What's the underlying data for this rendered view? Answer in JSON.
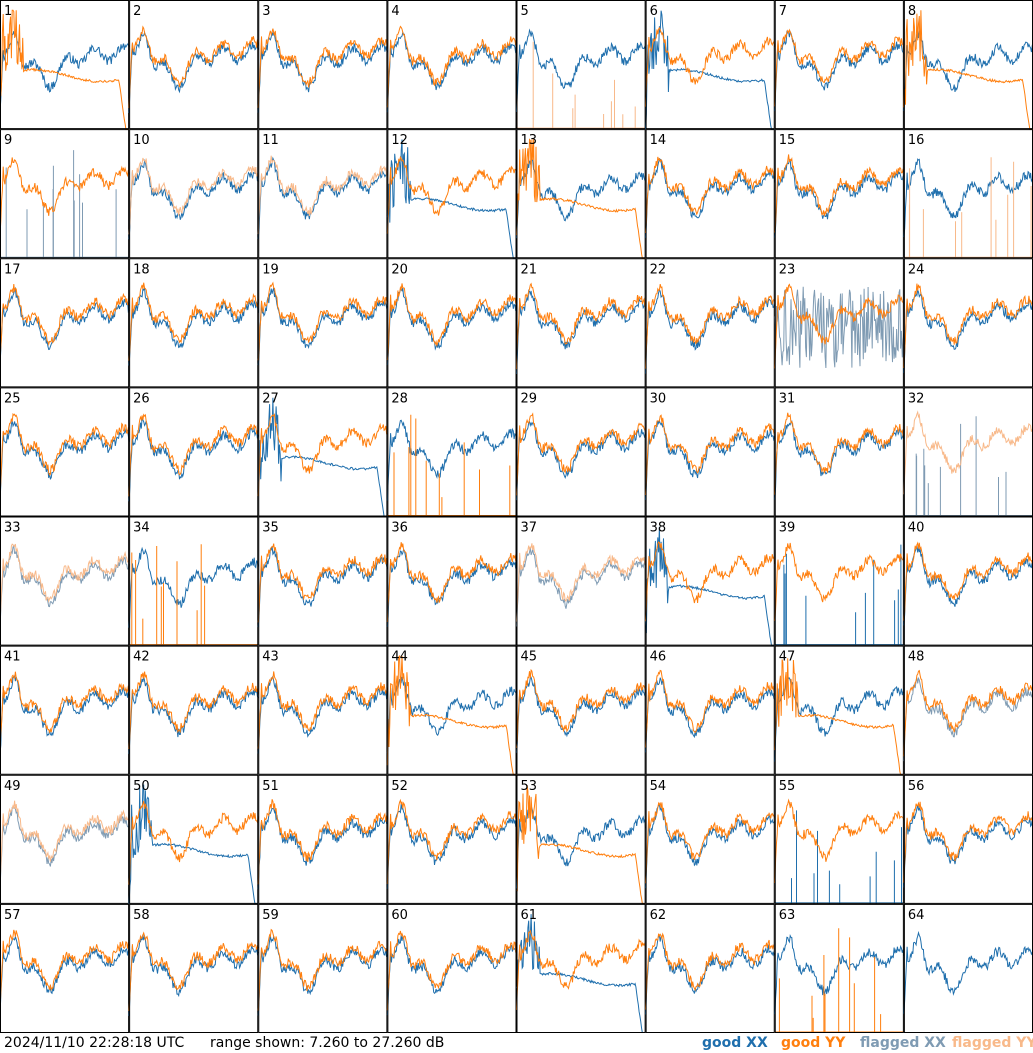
{
  "footer": {
    "timestamp": "2024/11/10 22:28:18 UTC",
    "range_text": "range shown: 7.260 to 27.260 dB"
  },
  "legend": [
    {
      "label": "good XX",
      "color": "#1f6fad"
    },
    {
      "label": "good YY",
      "color": "#ff7f0e"
    },
    {
      "label": "flagged XX",
      "color": "#7f9bb3"
    },
    {
      "label": "flagged YY",
      "color": "#f8b98a"
    }
  ],
  "colors": {
    "good_xx": "#1f6fad",
    "good_yy": "#ff7f0e",
    "flagged_xx": "#7f9bb3",
    "flagged_yy": "#f8b98a"
  },
  "chart_data": {
    "type": "line",
    "grid_rows": 8,
    "grid_cols": 8,
    "ylim": [
      7.26,
      27.26
    ],
    "yunits": "dB",
    "series_names": [
      "good XX",
      "good YY",
      "flagged XX",
      "flagged YY"
    ],
    "panels": [
      {
        "label": "1",
        "xx": "good",
        "yy": "good",
        "yy_mode": "dropoff"
      },
      {
        "label": "2",
        "xx": "good",
        "yy": "good"
      },
      {
        "label": "3",
        "xx": "good",
        "yy": "good"
      },
      {
        "label": "4",
        "xx": "good",
        "yy": "good"
      },
      {
        "label": "5",
        "xx": "good",
        "yy": "flagged",
        "yy_mode": "spikes"
      },
      {
        "label": "6",
        "xx": "good",
        "yy": "good",
        "xx_mode": "dropoff"
      },
      {
        "label": "7",
        "xx": "good",
        "yy": "good"
      },
      {
        "label": "8",
        "xx": "good",
        "yy": "good",
        "yy_mode": "dropoff"
      },
      {
        "label": "9",
        "xx": "flagged",
        "yy": "good",
        "xx_mode": "spikes"
      },
      {
        "label": "10",
        "xx": "good",
        "yy": "flagged"
      },
      {
        "label": "11",
        "xx": "good",
        "yy": "flagged"
      },
      {
        "label": "12",
        "xx": "good",
        "yy": "good",
        "xx_mode": "dropoff"
      },
      {
        "label": "13",
        "xx": "good",
        "yy": "good",
        "yy_mode": "dropoff"
      },
      {
        "label": "14",
        "xx": "good",
        "yy": "good"
      },
      {
        "label": "15",
        "xx": "good",
        "yy": "good"
      },
      {
        "label": "16",
        "xx": "good",
        "yy": "flagged",
        "yy_mode": "spikes"
      },
      {
        "label": "17",
        "xx": "good",
        "yy": "good"
      },
      {
        "label": "18",
        "xx": "good",
        "yy": "good"
      },
      {
        "label": "19",
        "xx": "good",
        "yy": "good"
      },
      {
        "label": "20",
        "xx": "good",
        "yy": "good"
      },
      {
        "label": "21",
        "xx": "good",
        "yy": "good"
      },
      {
        "label": "22",
        "xx": "good",
        "yy": "good"
      },
      {
        "label": "23",
        "xx": "flagged",
        "yy": "good",
        "xx_mode": "noisy"
      },
      {
        "label": "24",
        "xx": "good",
        "yy": "good"
      },
      {
        "label": "25",
        "xx": "good",
        "yy": "good"
      },
      {
        "label": "26",
        "xx": "good",
        "yy": "good"
      },
      {
        "label": "27",
        "xx": "good",
        "yy": "good",
        "xx_mode": "dropoff"
      },
      {
        "label": "28",
        "xx": "good",
        "yy": "good",
        "yy_mode": "spikes"
      },
      {
        "label": "29",
        "xx": "good",
        "yy": "good"
      },
      {
        "label": "30",
        "xx": "good",
        "yy": "good"
      },
      {
        "label": "31",
        "xx": "good",
        "yy": "good"
      },
      {
        "label": "32",
        "xx": "flagged",
        "yy": "flagged",
        "xx_mode": "spikes"
      },
      {
        "label": "33",
        "xx": "flagged",
        "yy": "flagged"
      },
      {
        "label": "34",
        "xx": "good",
        "yy": "good",
        "yy_mode": "spikes"
      },
      {
        "label": "35",
        "xx": "good",
        "yy": "good"
      },
      {
        "label": "36",
        "xx": "good",
        "yy": "good"
      },
      {
        "label": "37",
        "xx": "flagged",
        "yy": "flagged"
      },
      {
        "label": "38",
        "xx": "good",
        "yy": "good",
        "xx_mode": "dropoff"
      },
      {
        "label": "39",
        "xx": "good",
        "yy": "good",
        "xx_mode": "spikes"
      },
      {
        "label": "40",
        "xx": "good",
        "yy": "good"
      },
      {
        "label": "41",
        "xx": "good",
        "yy": "good"
      },
      {
        "label": "42",
        "xx": "good",
        "yy": "good"
      },
      {
        "label": "43",
        "xx": "good",
        "yy": "good"
      },
      {
        "label": "44",
        "xx": "good",
        "yy": "good",
        "yy_mode": "dropoff"
      },
      {
        "label": "45",
        "xx": "good",
        "yy": "good"
      },
      {
        "label": "46",
        "xx": "good",
        "yy": "good"
      },
      {
        "label": "47",
        "xx": "good",
        "yy": "good",
        "yy_mode": "dropoff"
      },
      {
        "label": "48",
        "xx": "flagged",
        "yy": "good"
      },
      {
        "label": "49",
        "xx": "flagged",
        "yy": "flagged"
      },
      {
        "label": "50",
        "xx": "good",
        "yy": "good",
        "xx_mode": "dropoff"
      },
      {
        "label": "51",
        "xx": "good",
        "yy": "good"
      },
      {
        "label": "52",
        "xx": "good",
        "yy": "good"
      },
      {
        "label": "53",
        "xx": "good",
        "yy": "good",
        "yy_mode": "dropoff"
      },
      {
        "label": "54",
        "xx": "good",
        "yy": "good"
      },
      {
        "label": "55",
        "xx": "good",
        "yy": "good",
        "xx_mode": "spikes"
      },
      {
        "label": "56",
        "xx": "good",
        "yy": "good"
      },
      {
        "label": "57",
        "xx": "good",
        "yy": "good"
      },
      {
        "label": "58",
        "xx": "good",
        "yy": "good"
      },
      {
        "label": "59",
        "xx": "good",
        "yy": "good"
      },
      {
        "label": "60",
        "xx": "good",
        "yy": "good"
      },
      {
        "label": "61",
        "xx": "good",
        "yy": "good",
        "xx_mode": "dropoff"
      },
      {
        "label": "62",
        "xx": "good",
        "yy": "good"
      },
      {
        "label": "63",
        "xx": "good",
        "yy": "good",
        "yy_mode": "spikes"
      },
      {
        "label": "64",
        "xx": "good",
        "yy": "none"
      }
    ]
  }
}
